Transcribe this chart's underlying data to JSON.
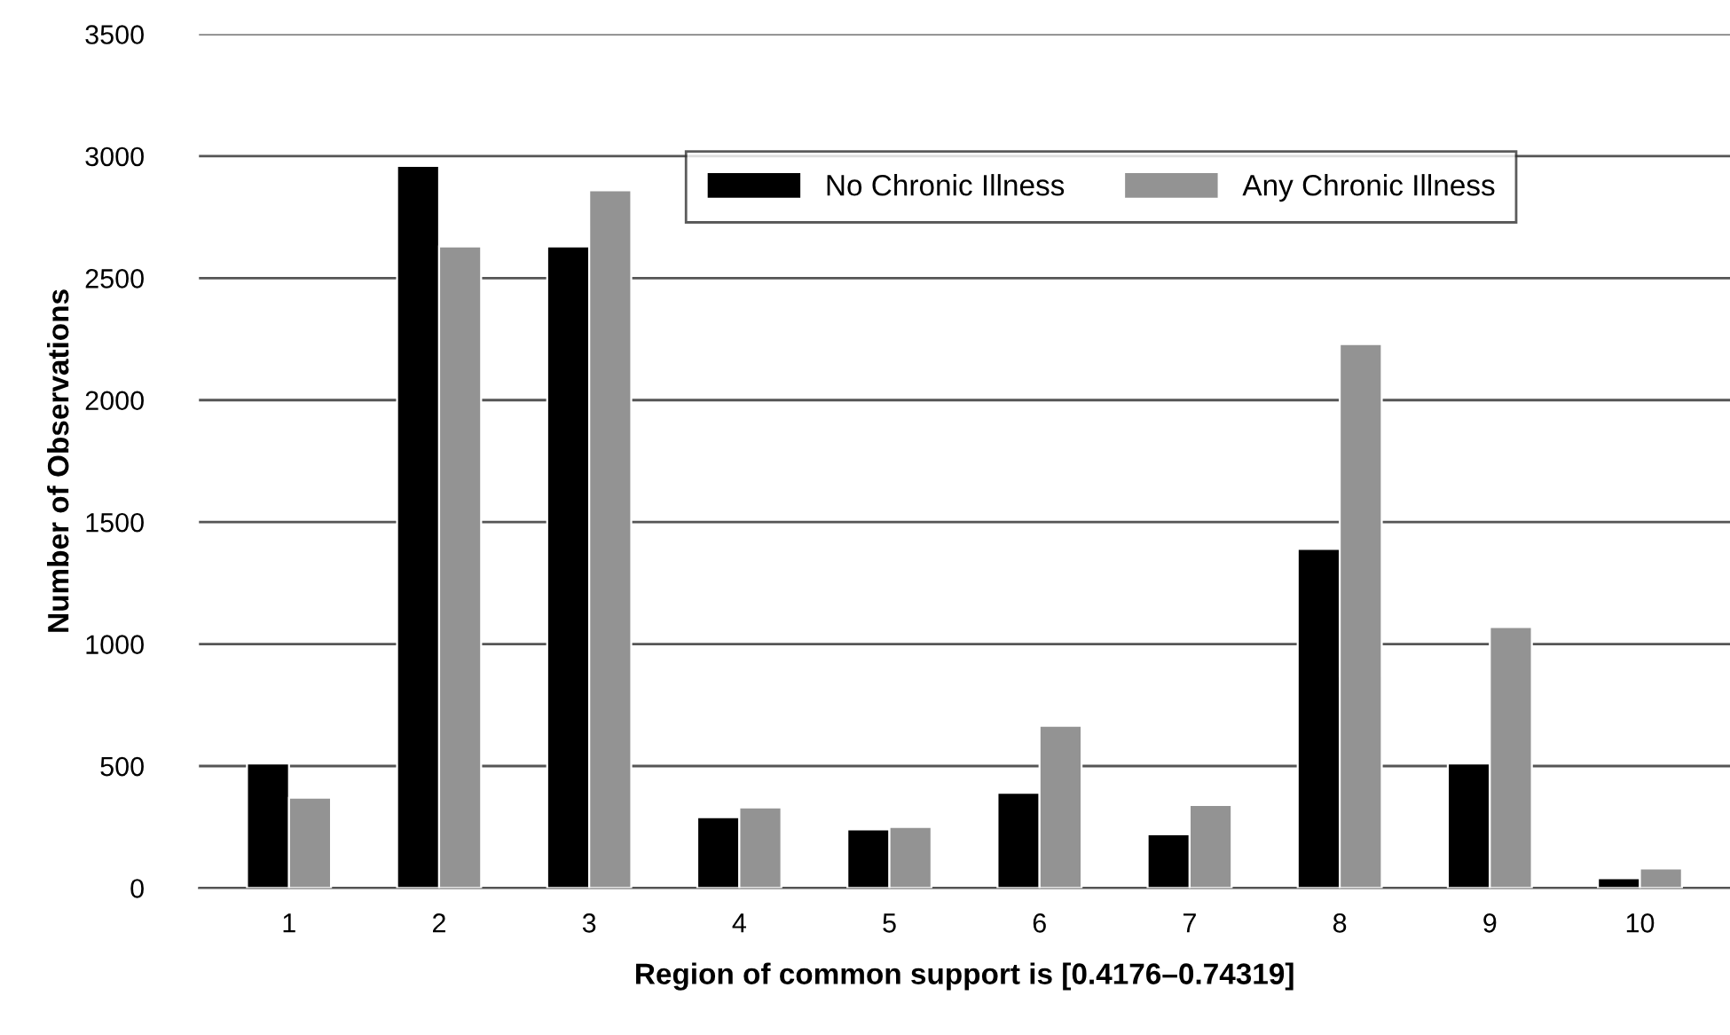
{
  "chart_data": {
    "type": "bar",
    "xlabel": "Region of common support is [0.4176–0.74319]",
    "ylabel": "Number of Observations",
    "categories": [
      "1",
      "2",
      "3",
      "4",
      "5",
      "6",
      "7",
      "8",
      "9",
      "10"
    ],
    "series": [
      {
        "name": "No Chronic Illness",
        "color": "#000000",
        "values": [
          510,
          2960,
          2630,
          290,
          240,
          390,
          220,
          1390,
          510,
          40
        ]
      },
      {
        "name": "Any Chronic Illness",
        "color": "#939393",
        "values": [
          370,
          2630,
          2860,
          330,
          250,
          665,
          340,
          2230,
          1070,
          80
        ]
      }
    ],
    "ylim": [
      0,
      3500
    ],
    "yticks": [
      0,
      500,
      1000,
      1500,
      2000,
      2500,
      3000,
      3500
    ],
    "grid": "y",
    "legend": "top right"
  }
}
